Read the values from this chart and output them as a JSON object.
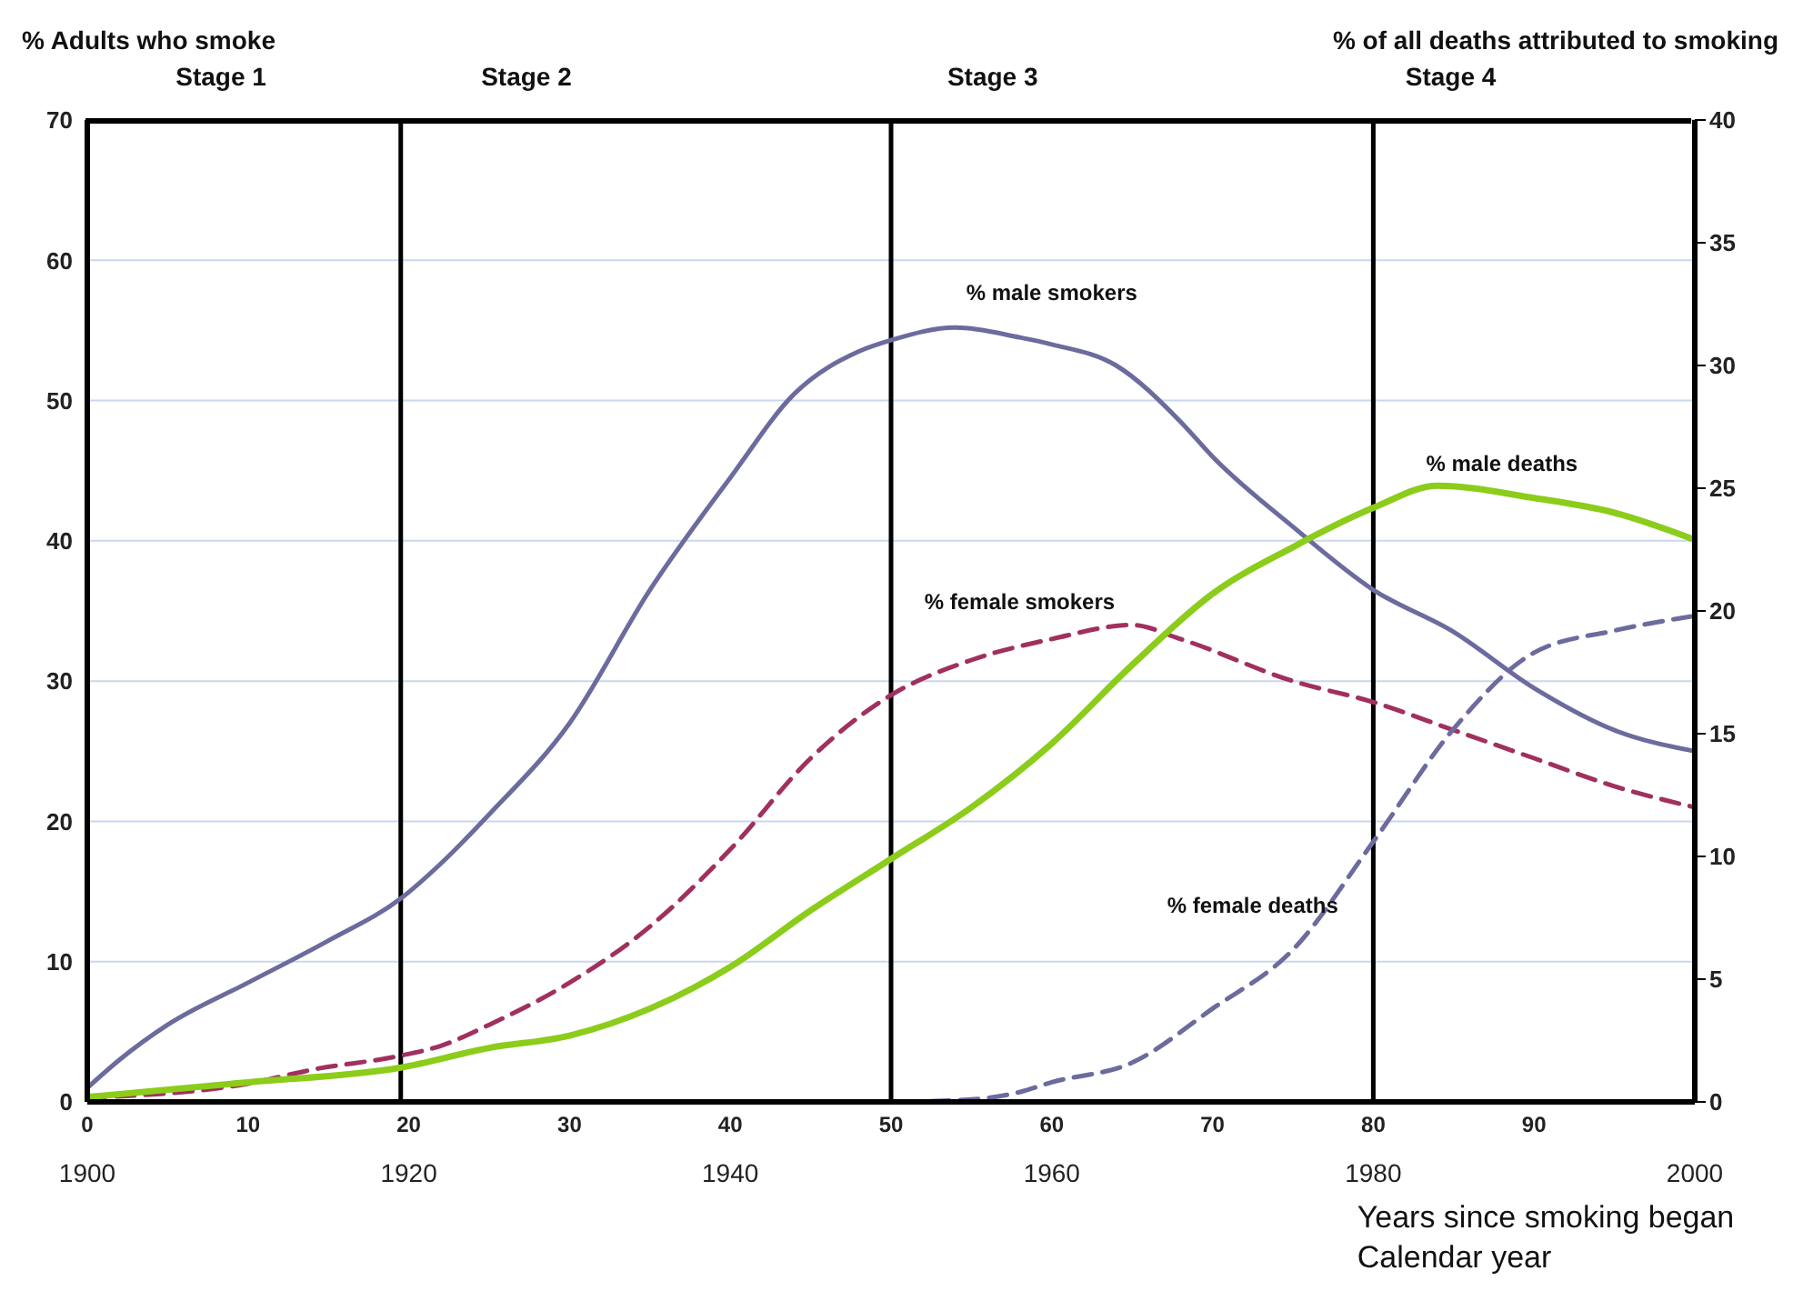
{
  "chart_data": {
    "type": "line",
    "ylabel": "% Adults who smoke",
    "y2label": "% of all deaths attributed to smoking",
    "xlabel": "Years since smoking began",
    "x2label": "Calendar year",
    "xlim": [
      0,
      100
    ],
    "xticks": [
      0,
      10,
      20,
      30,
      40,
      50,
      60,
      70,
      80,
      90
    ],
    "x2lim": [
      1900,
      2000
    ],
    "x2ticks": [
      1900,
      1920,
      1940,
      1960,
      1980,
      2000
    ],
    "ylim": [
      0,
      70
    ],
    "yticks": [
      0,
      10,
      20,
      30,
      40,
      50,
      60,
      70
    ],
    "y2lim": [
      0,
      40
    ],
    "y2ticks": [
      0,
      5,
      10,
      15,
      20,
      25,
      30,
      35,
      40
    ],
    "grid": "y",
    "marker": "none",
    "series": [
      {
        "name": "% male smokers",
        "color": "#6b6b9e",
        "line_style": "solid",
        "x": [
          0,
          2,
          5,
          10,
          15,
          19.5,
          22,
          25,
          30,
          35,
          40,
          44,
          48,
          50,
          54,
          58,
          60,
          64,
          68,
          70,
          75,
          80,
          85,
          90,
          95,
          100
        ],
        "values": [
          1,
          3,
          5.5,
          8.5,
          11.5,
          14.5,
          17,
          20.5,
          27,
          36.5,
          44.5,
          50.5,
          53.5,
          54.3,
          55.2,
          54.5,
          54,
          52.5,
          48.5,
          46,
          41,
          36.5,
          33.5,
          29.5,
          26.5,
          25
        ]
      },
      {
        "name": "% female smokers",
        "color": "#a0305f",
        "line_style": "dashed",
        "x": [
          0,
          10,
          14,
          19.5,
          22,
          25,
          30,
          35,
          40,
          45,
          50,
          55,
          60,
          65,
          68,
          75,
          80,
          85,
          90,
          95,
          100
        ],
        "values": [
          0.3,
          1.3,
          2.3,
          3.3,
          4,
          5.5,
          8.5,
          12.5,
          18,
          24.5,
          29,
          31.5,
          33,
          34,
          33,
          30,
          28.5,
          26.5,
          24.5,
          22.5,
          21
        ]
      },
      {
        "name": "% male deaths",
        "color": "#8ccc1a",
        "line_style": "solid",
        "axis": "y2",
        "x": [
          0,
          10,
          19.5,
          25,
          30,
          35,
          40,
          45,
          50,
          55,
          60,
          65,
          70,
          75,
          80,
          84,
          90,
          95,
          100
        ],
        "values": [
          0.2,
          0.8,
          1.4,
          2.2,
          2.7,
          3.8,
          5.5,
          7.8,
          9.9,
          12,
          14.6,
          17.8,
          20.7,
          22.6,
          24.2,
          25.1,
          24.6,
          24,
          22.9
        ]
      },
      {
        "name": "% female deaths",
        "color": "#6b6b9e",
        "line_style": "dashed",
        "axis": "y2",
        "x": [
          0,
          50,
          55,
          58,
          60,
          65,
          70,
          75,
          80,
          85,
          90,
          95,
          100
        ],
        "values": [
          0,
          0,
          0.1,
          0.4,
          0.8,
          1.6,
          3.8,
          6.2,
          10.6,
          15.2,
          18.3,
          19.2,
          19.8
        ]
      }
    ],
    "ref_lines": [
      {
        "axis": "x",
        "value": 19.5,
        "color": "#000000"
      },
      {
        "axis": "x",
        "value": 50,
        "color": "#000000"
      },
      {
        "axis": "x",
        "value": 80,
        "color": "#000000"
      }
    ],
    "annotations": [
      "Stage 1",
      "Stage 2",
      "Stage 3",
      "Stage 4"
    ]
  }
}
